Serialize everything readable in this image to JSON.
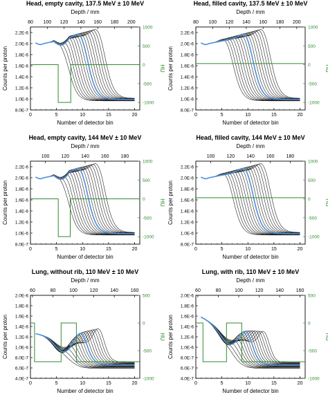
{
  "chart_data": [
    {
      "type": "line",
      "title": "Head, empty cavity, 137.5 MeV ± 10 MeV",
      "xlabel": "Number of detector bin",
      "ylabel": "Counts per proton",
      "top_xlabel": "Depth / mm",
      "right_ylabel": "HU",
      "xlim": [
        0,
        21
      ],
      "xticks": [
        0,
        5,
        10,
        15,
        20
      ],
      "ylim": [
        8e-07,
        2.3e-06
      ],
      "yticks": [
        "8.0E-7",
        "1.0E-6",
        "1.2E-6",
        "1.4E-6",
        "1.6E-6",
        "1.8E-6",
        "2.0E-6",
        "2.2E-6"
      ],
      "top_xticks": [
        "80",
        "100",
        "120",
        "140",
        "160",
        "180",
        "200"
      ],
      "right_yticks": [
        "1000",
        "500",
        "0",
        "-500",
        "-1000"
      ],
      "depth_range": [
        80,
        210
      ],
      "hu_range": [
        -1200,
        1000
      ],
      "curve_count": 16,
      "highlight_color": "#4a8fdb",
      "curve_color": "#222222",
      "hu_color": "#2f8a2f",
      "hu_profile": {
        "depth": [
          80,
          113,
          113,
          128,
          128,
          210
        ],
        "hu": [
          0,
          0,
          -1000,
          -1000,
          0,
          0
        ]
      }
    },
    {
      "type": "line",
      "title": "Head, filled cavity, 137.5 MeV ± 10 MeV",
      "xlabel": "Number of detector bin",
      "ylabel": "Counts per proton",
      "top_xlabel": "Depth / mm",
      "right_ylabel": "HU",
      "xlim": [
        0,
        21
      ],
      "xticks": [
        0,
        5,
        10,
        15,
        20
      ],
      "ylim": [
        8e-07,
        2.3e-06
      ],
      "yticks": [
        "8.0E-7",
        "1.0E-6",
        "1.2E-6",
        "1.4E-6",
        "1.6E-6",
        "1.8E-6",
        "2.0E-6",
        "2.2E-6"
      ],
      "top_xticks": [
        "80",
        "100",
        "120",
        "140",
        "160",
        "180",
        "200"
      ],
      "right_yticks": [
        "1000",
        "500",
        "0",
        "-500",
        "-1000"
      ],
      "depth_range": [
        80,
        210
      ],
      "hu_range": [
        -1200,
        1000
      ],
      "curve_count": 16,
      "highlight_color": "#4a8fdb",
      "curve_color": "#222222",
      "hu_color": "#2f8a2f",
      "hu_profile": {
        "depth": [
          80,
          210
        ],
        "hu": [
          30,
          30
        ]
      }
    },
    {
      "type": "line",
      "title": "Head, empty cavity, 144 MeV ± 10 MeV",
      "xlabel": "Number of detector bin",
      "ylabel": "Counts per proton",
      "top_xlabel": "Depth / mm",
      "right_ylabel": "HU",
      "xlim": [
        0,
        21
      ],
      "xticks": [
        0,
        5,
        10,
        15,
        20
      ],
      "ylim": [
        8e-07,
        2.3e-06
      ],
      "yticks": [
        "8.0E-7",
        "1.0E-6",
        "1.2E-6",
        "1.4E-6",
        "1.6E-6",
        "1.8E-6",
        "2.0E-6",
        "2.2E-6"
      ],
      "top_xticks": [
        "100",
        "120",
        "140",
        "160",
        "180"
      ],
      "right_yticks": [
        "1000",
        "500",
        "0",
        "-500",
        "-1000"
      ],
      "depth_range": [
        85,
        195
      ],
      "hu_range": [
        -1200,
        1000
      ],
      "curve_count": 16,
      "highlight_color": "#4a8fdb",
      "curve_color": "#222222",
      "hu_color": "#2f8a2f",
      "hu_profile": {
        "depth": [
          85,
          113,
          113,
          125,
          125,
          195
        ],
        "hu": [
          0,
          0,
          -1000,
          -1000,
          0,
          0
        ]
      }
    },
    {
      "type": "line",
      "title": "Head, filled cavity, 144 MeV ± 10 MeV",
      "xlabel": "Number of detector bin",
      "ylabel": "Counts per proton",
      "top_xlabel": "Depth / mm",
      "right_ylabel": "HU",
      "xlim": [
        0,
        21
      ],
      "xticks": [
        0,
        5,
        10,
        15,
        20
      ],
      "ylim": [
        8e-07,
        2.3e-06
      ],
      "yticks": [
        "8.0E-7",
        "1.0E-6",
        "1.2E-6",
        "1.4E-6",
        "1.6E-6",
        "1.8E-6",
        "2.0E-6",
        "2.2E-6"
      ],
      "top_xticks": [
        "100",
        "120",
        "140",
        "160",
        "180"
      ],
      "right_yticks": [
        "1000",
        "500",
        "0",
        "-500",
        "-1000"
      ],
      "depth_range": [
        85,
        195
      ],
      "hu_range": [
        -1200,
        1000
      ],
      "curve_count": 16,
      "highlight_color": "#4a8fdb",
      "curve_color": "#222222",
      "hu_color": "#2f8a2f",
      "hu_profile": {
        "depth": [
          85,
          195
        ],
        "hu": [
          30,
          30
        ]
      }
    },
    {
      "type": "line",
      "title": "Lung, without rib, 110 MeV ± 10 MeV",
      "xlabel": "Number of detector bin",
      "ylabel": "Counts per proton",
      "top_xlabel": "Depth / mm",
      "right_ylabel": "HU",
      "xlim": [
        0,
        21
      ],
      "xticks": [
        0,
        5,
        10,
        15,
        20
      ],
      "ylim": [
        4e-07,
        2e-06
      ],
      "yticks": [
        "4.0E-7",
        "6.0E-7",
        "8.0E-7",
        "1.0E-6",
        "1.2E-6",
        "1.4E-6",
        "1.6E-6",
        "1.8E-6",
        "2.0E-6"
      ],
      "top_xticks": [
        "60",
        "80",
        "100",
        "120",
        "140",
        "160"
      ],
      "right_yticks": [
        "500",
        "0",
        "-500",
        "-1000"
      ],
      "depth_range": [
        58,
        165
      ],
      "hu_range": [
        -1000,
        500
      ],
      "curve_count": 16,
      "highlight_color": "#4a8fdb",
      "curve_color": "#222222",
      "hu_color": "#2f8a2f",
      "hu_profile": {
        "depth": [
          58,
          62,
          62,
          88,
          88,
          103,
          103,
          165
        ],
        "hu": [
          0,
          0,
          -700,
          -700,
          0,
          0,
          -700,
          -700
        ]
      }
    },
    {
      "type": "line",
      "title": "Lung, with rib, 110 MeV ± 10 MeV",
      "xlabel": "Number of detector bin",
      "ylabel": "Counts per proton",
      "top_xlabel": "Depth / mm",
      "right_ylabel": "HU",
      "xlim": [
        0,
        21
      ],
      "xticks": [
        0,
        5,
        10,
        15,
        20
      ],
      "ylim": [
        4e-07,
        2e-06
      ],
      "yticks": [
        "4.0E-7",
        "6.0E-7",
        "8.0E-7",
        "1.0E-6",
        "1.2E-6",
        "1.4E-6",
        "1.6E-6",
        "1.8E-6",
        "2.0E-6"
      ],
      "top_xticks": [
        "60",
        "80",
        "100",
        "120",
        "140",
        "160"
      ],
      "right_yticks": [
        "500",
        "0",
        "-500",
        "-1000"
      ],
      "depth_range": [
        58,
        165
      ],
      "hu_range": [
        -1000,
        500
      ],
      "curve_count": 16,
      "highlight_color": "#4a8fdb",
      "curve_color": "#222222",
      "hu_color": "#2f8a2f",
      "hu_profile": {
        "depth": [
          58,
          65,
          65,
          88,
          88,
          103,
          103,
          165
        ],
        "hu": [
          0,
          0,
          -700,
          -700,
          0,
          0,
          -700,
          -700
        ]
      }
    }
  ]
}
